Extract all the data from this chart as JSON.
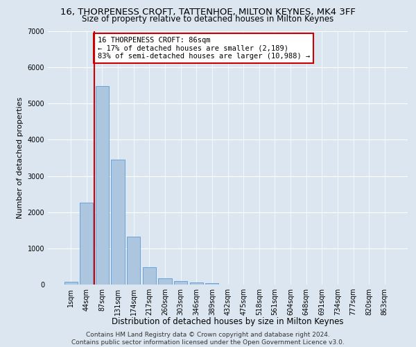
{
  "title": "16, THORPENESS CROFT, TATTENHOE, MILTON KEYNES, MK4 3FF",
  "subtitle": "Size of property relative to detached houses in Milton Keynes",
  "xlabel": "Distribution of detached houses by size in Milton Keynes",
  "ylabel": "Number of detached properties",
  "footer_line1": "Contains HM Land Registry data © Crown copyright and database right 2024.",
  "footer_line2": "Contains public sector information licensed under the Open Government Licence v3.0.",
  "bar_labels": [
    "1sqm",
    "44sqm",
    "87sqm",
    "131sqm",
    "174sqm",
    "217sqm",
    "260sqm",
    "303sqm",
    "346sqm",
    "389sqm",
    "432sqm",
    "475sqm",
    "518sqm",
    "561sqm",
    "604sqm",
    "648sqm",
    "691sqm",
    "734sqm",
    "777sqm",
    "820sqm",
    "863sqm"
  ],
  "bar_values": [
    80,
    2270,
    5480,
    3460,
    1320,
    470,
    165,
    95,
    55,
    35,
    0,
    0,
    0,
    0,
    0,
    0,
    0,
    0,
    0,
    0,
    0
  ],
  "bar_color": "#adc6e0",
  "bar_edge_color": "#5b9bd5",
  "ylim": [
    0,
    7000
  ],
  "yticks": [
    0,
    1000,
    2000,
    3000,
    4000,
    5000,
    6000,
    7000
  ],
  "vline_x": 1.5,
  "vline_color": "#cc0000",
  "annotation_text": "16 THORPENESS CROFT: 86sqm\n← 17% of detached houses are smaller (2,189)\n83% of semi-detached houses are larger (10,988) →",
  "annotation_box_color": "#ffffff",
  "annotation_box_edge": "#cc0000",
  "background_color": "#dce6f0",
  "axes_bg_color": "#dce6f0",
  "grid_color": "#ffffff",
  "title_fontsize": 9.5,
  "subtitle_fontsize": 8.5,
  "xlabel_fontsize": 8.5,
  "ylabel_fontsize": 8,
  "tick_fontsize": 7,
  "annotation_fontsize": 7.5,
  "footer_fontsize": 6.5
}
